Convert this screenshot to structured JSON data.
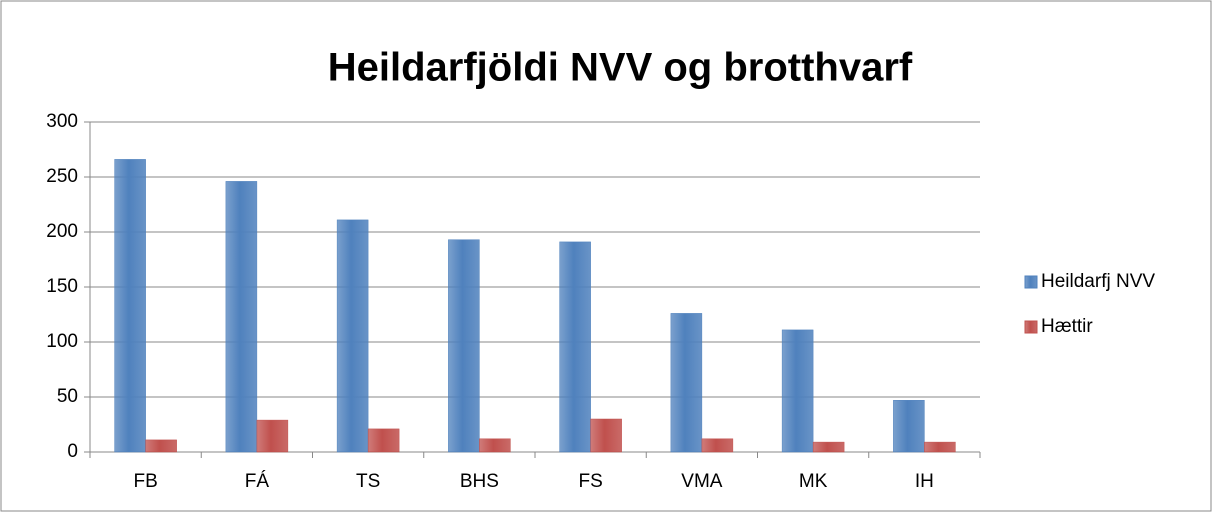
{
  "chart_data": {
    "type": "bar",
    "title": "Heildarfjöldi NVV og brotthvarf",
    "categories": [
      "FB",
      "FÁ",
      "TS",
      "BHS",
      "FS",
      "VMA",
      "MK",
      "IH"
    ],
    "series": [
      {
        "name": "Heildarfj NVV",
        "color": "#4f81bd",
        "values": [
          266,
          246,
          211,
          193,
          191,
          126,
          111,
          47
        ]
      },
      {
        "name": "Hættir",
        "color": "#c0504d",
        "values": [
          11,
          29,
          21,
          12,
          30,
          12,
          9,
          9
        ]
      }
    ],
    "ylim": [
      0,
      300
    ],
    "yticks": [
      0,
      50,
      100,
      150,
      200,
      250,
      300
    ],
    "grid": true,
    "legend": "right"
  }
}
